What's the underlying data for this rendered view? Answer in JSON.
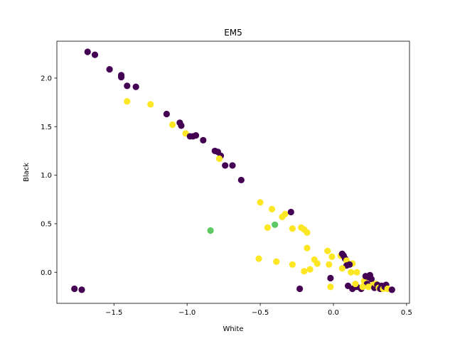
{
  "chart_data": {
    "type": "scatter",
    "title": "EM5",
    "xlabel": "White",
    "ylabel": "Black",
    "xlim": [
      -1.89,
      0.52
    ],
    "ylim": [
      -0.32,
      2.38
    ],
    "xticks": [
      -1.5,
      -1.0,
      -0.5,
      0.0,
      0.5
    ],
    "xtick_labels": [
      "−1.5",
      "−1.0",
      "−0.5",
      "0.0",
      "0.5"
    ],
    "yticks": [
      0.0,
      0.5,
      1.0,
      1.5,
      2.0
    ],
    "ytick_labels": [
      "0.0",
      "0.5",
      "1.0",
      "1.5",
      "2.0"
    ],
    "grid": false,
    "legend": "none",
    "colors": {
      "purple": "#440154",
      "green": "#5ec962",
      "yellow": "#fde725"
    },
    "points": [
      {
        "x": -1.68,
        "y": 2.27,
        "c": "purple"
      },
      {
        "x": -1.63,
        "y": 2.24,
        "c": "purple"
      },
      {
        "x": -1.53,
        "y": 2.09,
        "c": "purple"
      },
      {
        "x": -1.45,
        "y": 2.03,
        "c": "purple"
      },
      {
        "x": -1.45,
        "y": 2.01,
        "c": "purple"
      },
      {
        "x": -1.41,
        "y": 1.92,
        "c": "purple"
      },
      {
        "x": -1.35,
        "y": 1.91,
        "c": "purple"
      },
      {
        "x": -1.41,
        "y": 1.76,
        "c": "yellow"
      },
      {
        "x": -1.25,
        "y": 1.73,
        "c": "yellow"
      },
      {
        "x": -1.14,
        "y": 1.63,
        "c": "purple"
      },
      {
        "x": -1.1,
        "y": 1.52,
        "c": "yellow"
      },
      {
        "x": -1.05,
        "y": 1.54,
        "c": "purple"
      },
      {
        "x": -1.04,
        "y": 1.51,
        "c": "purple"
      },
      {
        "x": -1.01,
        "y": 1.43,
        "c": "yellow"
      },
      {
        "x": -0.98,
        "y": 1.4,
        "c": "purple"
      },
      {
        "x": -0.96,
        "y": 1.4,
        "c": "purple"
      },
      {
        "x": -0.94,
        "y": 1.41,
        "c": "purple"
      },
      {
        "x": -0.89,
        "y": 1.36,
        "c": "purple"
      },
      {
        "x": -0.81,
        "y": 1.25,
        "c": "purple"
      },
      {
        "x": -0.79,
        "y": 1.24,
        "c": "purple"
      },
      {
        "x": -0.77,
        "y": 1.2,
        "c": "purple"
      },
      {
        "x": -0.78,
        "y": 1.17,
        "c": "yellow"
      },
      {
        "x": -0.74,
        "y": 1.1,
        "c": "purple"
      },
      {
        "x": -0.69,
        "y": 1.1,
        "c": "purple"
      },
      {
        "x": -0.63,
        "y": 0.95,
        "c": "purple"
      },
      {
        "x": -0.5,
        "y": 0.72,
        "c": "yellow"
      },
      {
        "x": -0.42,
        "y": 0.65,
        "c": "yellow"
      },
      {
        "x": -0.35,
        "y": 0.57,
        "c": "yellow"
      },
      {
        "x": -0.33,
        "y": 0.6,
        "c": "yellow"
      },
      {
        "x": -0.29,
        "y": 0.62,
        "c": "purple"
      },
      {
        "x": -0.45,
        "y": 0.46,
        "c": "yellow"
      },
      {
        "x": -0.4,
        "y": 0.49,
        "c": "green"
      },
      {
        "x": -0.28,
        "y": 0.45,
        "c": "yellow"
      },
      {
        "x": -0.22,
        "y": 0.46,
        "c": "yellow"
      },
      {
        "x": -0.2,
        "y": 0.44,
        "c": "yellow"
      },
      {
        "x": -0.18,
        "y": 0.41,
        "c": "yellow"
      },
      {
        "x": -0.84,
        "y": 0.43,
        "c": "green"
      },
      {
        "x": -0.18,
        "y": 0.25,
        "c": "yellow"
      },
      {
        "x": -0.04,
        "y": 0.22,
        "c": "yellow"
      },
      {
        "x": -0.51,
        "y": 0.14,
        "c": "yellow"
      },
      {
        "x": -0.39,
        "y": 0.11,
        "c": "yellow"
      },
      {
        "x": -0.28,
        "y": 0.08,
        "c": "yellow"
      },
      {
        "x": -0.13,
        "y": 0.13,
        "c": "yellow"
      },
      {
        "x": -0.11,
        "y": 0.09,
        "c": "yellow"
      },
      {
        "x": -0.16,
        "y": 0.03,
        "c": "yellow"
      },
      {
        "x": -0.2,
        "y": 0.01,
        "c": "yellow"
      },
      {
        "x": -0.01,
        "y": 0.16,
        "c": "yellow"
      },
      {
        "x": 0.05,
        "y": 0.17,
        "c": "yellow"
      },
      {
        "x": 0.06,
        "y": 0.19,
        "c": "purple"
      },
      {
        "x": 0.07,
        "y": 0.17,
        "c": "purple"
      },
      {
        "x": 0.08,
        "y": 0.14,
        "c": "purple"
      },
      {
        "x": 0.09,
        "y": 0.12,
        "c": "yellow"
      },
      {
        "x": 0.13,
        "y": 0.09,
        "c": "yellow"
      },
      {
        "x": 0.09,
        "y": 0.07,
        "c": "purple"
      },
      {
        "x": 0.11,
        "y": 0.08,
        "c": "purple"
      },
      {
        "x": 0.06,
        "y": 0.04,
        "c": "yellow"
      },
      {
        "x": 0.12,
        "y": 0.0,
        "c": "yellow"
      },
      {
        "x": 0.16,
        "y": 0.0,
        "c": "yellow"
      },
      {
        "x": -0.03,
        "y": 0.08,
        "c": "yellow"
      },
      {
        "x": -0.02,
        "y": -0.06,
        "c": "purple"
      },
      {
        "x": -0.02,
        "y": -0.15,
        "c": "yellow"
      },
      {
        "x": -0.23,
        "y": -0.17,
        "c": "purple"
      },
      {
        "x": 0.1,
        "y": -0.14,
        "c": "purple"
      },
      {
        "x": 0.13,
        "y": -0.17,
        "c": "purple"
      },
      {
        "x": 0.16,
        "y": -0.15,
        "c": "purple"
      },
      {
        "x": 0.19,
        "y": -0.17,
        "c": "purple"
      },
      {
        "x": 0.21,
        "y": -0.09,
        "c": "yellow"
      },
      {
        "x": 0.22,
        "y": -0.04,
        "c": "purple"
      },
      {
        "x": 0.24,
        "y": -0.05,
        "c": "purple"
      },
      {
        "x": 0.25,
        "y": -0.03,
        "c": "purple"
      },
      {
        "x": 0.26,
        "y": -0.07,
        "c": "purple"
      },
      {
        "x": 0.23,
        "y": -0.12,
        "c": "purple"
      },
      {
        "x": 0.24,
        "y": -0.15,
        "c": "yellow"
      },
      {
        "x": 0.27,
        "y": -0.13,
        "c": "yellow"
      },
      {
        "x": 0.28,
        "y": -0.16,
        "c": "purple"
      },
      {
        "x": 0.29,
        "y": -0.12,
        "c": "yellow"
      },
      {
        "x": 0.3,
        "y": -0.13,
        "c": "purple"
      },
      {
        "x": 0.31,
        "y": -0.16,
        "c": "yellow"
      },
      {
        "x": 0.32,
        "y": -0.17,
        "c": "purple"
      },
      {
        "x": 0.33,
        "y": -0.14,
        "c": "purple"
      },
      {
        "x": 0.34,
        "y": -0.17,
        "c": "yellow"
      },
      {
        "x": 0.35,
        "y": -0.15,
        "c": "purple"
      },
      {
        "x": 0.36,
        "y": -0.13,
        "c": "purple"
      },
      {
        "x": 0.37,
        "y": -0.17,
        "c": "yellow"
      },
      {
        "x": 0.4,
        "y": -0.18,
        "c": "purple"
      },
      {
        "x": 0.2,
        "y": -0.15,
        "c": "yellow"
      },
      {
        "x": 0.15,
        "y": -0.12,
        "c": "yellow"
      },
      {
        "x": -1.77,
        "y": -0.17,
        "c": "purple"
      },
      {
        "x": -1.72,
        "y": -0.18,
        "c": "purple"
      }
    ]
  }
}
